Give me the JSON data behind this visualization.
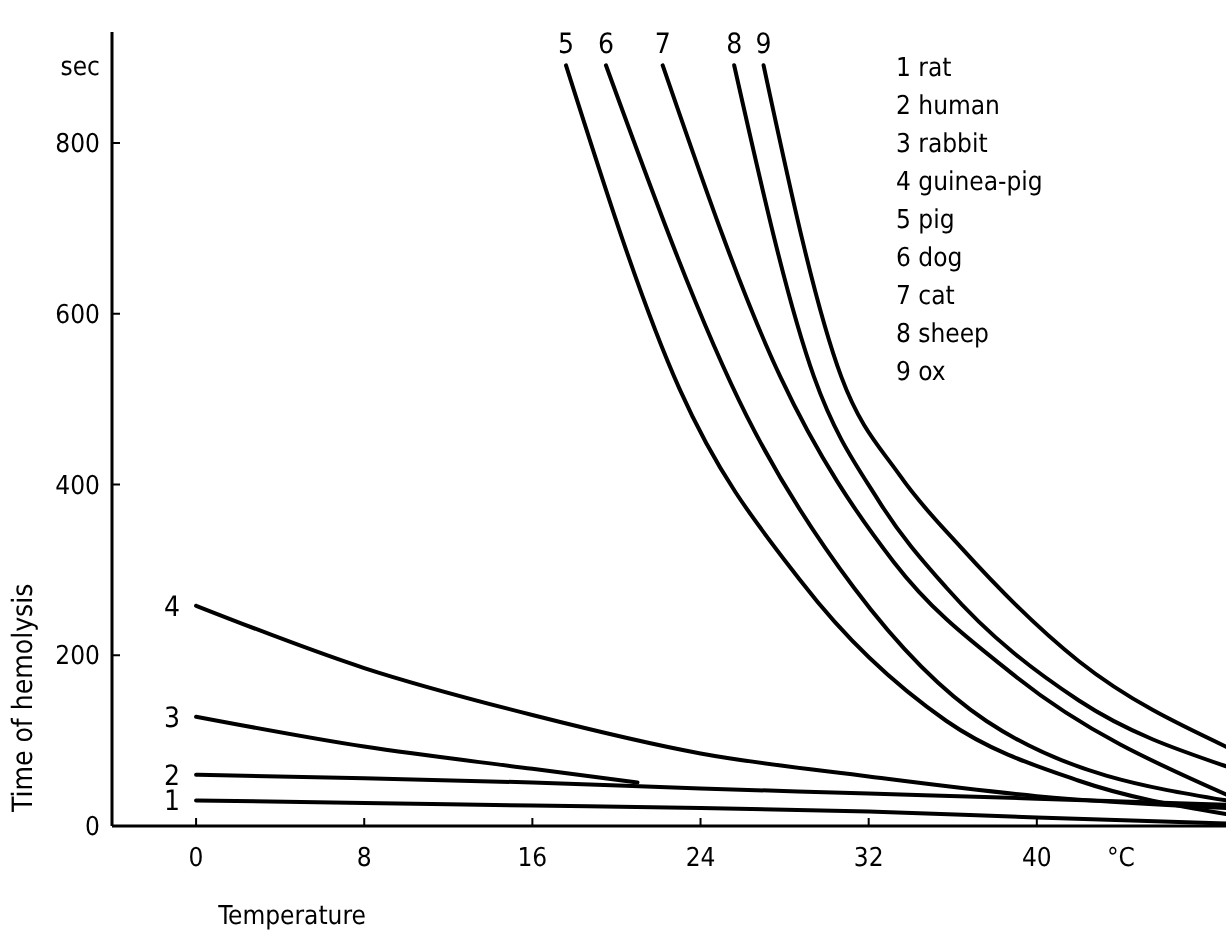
{
  "chart_data": {
    "type": "line",
    "xlabel": "Temperature",
    "ylabel": "Time of hemolysis",
    "xlim": [
      -4,
      49
    ],
    "ylim": [
      0,
      930
    ],
    "xticks": [
      0,
      8,
      16,
      24,
      32,
      40,
      {
        "value": 44,
        "label": "°C"
      }
    ],
    "yticks": [
      0,
      200,
      400,
      600,
      800,
      {
        "value": 890,
        "label": "sec"
      }
    ],
    "grid": false,
    "marker": "none",
    "line_style": "solid",
    "series": [
      {
        "name": "1",
        "color": "#000000",
        "x": [
          0,
          8,
          16,
          24,
          32,
          40,
          49
        ],
        "values": [
          30,
          27,
          24,
          21,
          17,
          10,
          3
        ]
      },
      {
        "name": "2",
        "color": "#000000",
        "x": [
          0,
          8,
          16,
          24,
          32,
          40,
          49
        ],
        "values": [
          60,
          56,
          51,
          44,
          38,
          32,
          25
        ]
      },
      {
        "name": "3",
        "color": "#000000",
        "x": [
          0,
          8,
          16,
          21
        ],
        "values": [
          128,
          93,
          67,
          51
        ]
      },
      {
        "name": "4",
        "color": "#000000",
        "x": [
          0,
          8,
          16,
          24,
          32,
          40,
          49
        ],
        "values": [
          258,
          185,
          130,
          85,
          58,
          35,
          21
        ]
      },
      {
        "name": "5",
        "color": "#000000",
        "x": [
          17.6,
          23,
          28.8,
          35.7,
          42,
          49
        ],
        "values": [
          891,
          512,
          286,
          123,
          53,
          14
        ]
      },
      {
        "name": "6",
        "color": "#000000",
        "x": [
          19.5,
          26.2,
          31.3,
          37.6,
          49
        ],
        "values": [
          891,
          480,
          279,
          123,
          30
        ]
      },
      {
        "name": "7",
        "color": "#000000",
        "x": [
          22.2,
          27.8,
          33.2,
          38.9,
          49
        ],
        "values": [
          891,
          526,
          309,
          177,
          37
        ]
      },
      {
        "name": "8",
        "color": "#000000",
        "x": [
          25.6,
          29.4,
          32.5,
          35.7,
          42,
          49
        ],
        "values": [
          891,
          526,
          380,
          279,
          147,
          70
        ]
      },
      {
        "name": "9",
        "color": "#000000",
        "x": [
          27,
          30.7,
          33.5,
          36.4,
          42,
          49
        ],
        "values": [
          891,
          526,
          410,
          326,
          193,
          93
        ]
      }
    ],
    "annotations": [
      "1 rat",
      "2 human",
      "3 rabbit",
      "4 guinea-pig",
      "5 pig",
      "6 dog",
      "7 cat",
      "8 sheep",
      "9 ox"
    ]
  }
}
